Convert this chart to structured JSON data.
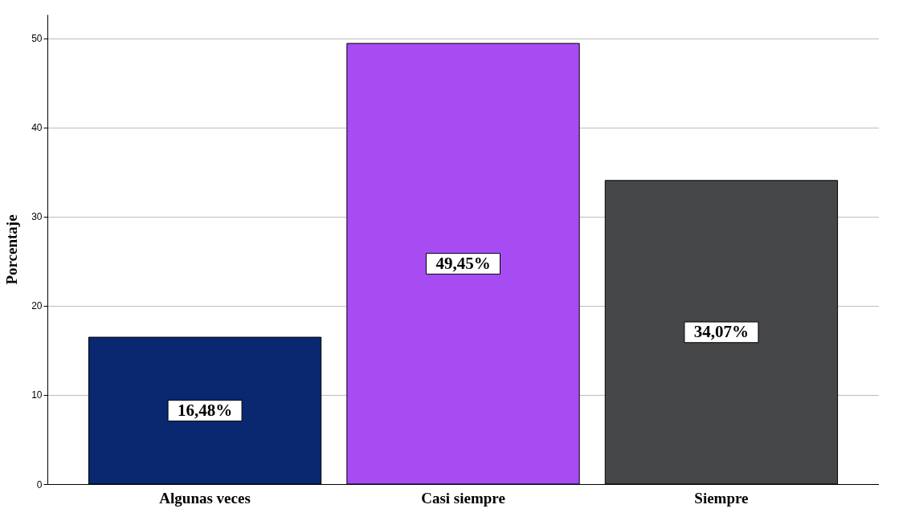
{
  "chart_data": {
    "type": "bar",
    "ylabel": "Porcentaje",
    "categories": [
      "Algunas veces",
      "Casi siempre",
      "Siempre"
    ],
    "values": [
      16.48,
      49.45,
      34.07
    ],
    "colors": [
      "#0a2870",
      "#a64cf2",
      "#464749"
    ],
    "value_labels": [
      "16,48%",
      "49,45%",
      "34,07%"
    ],
    "ylim": [
      0,
      52.7
    ],
    "yticks": [
      0,
      10,
      20,
      30,
      40,
      50
    ],
    "grid": "y",
    "legend": false
  }
}
